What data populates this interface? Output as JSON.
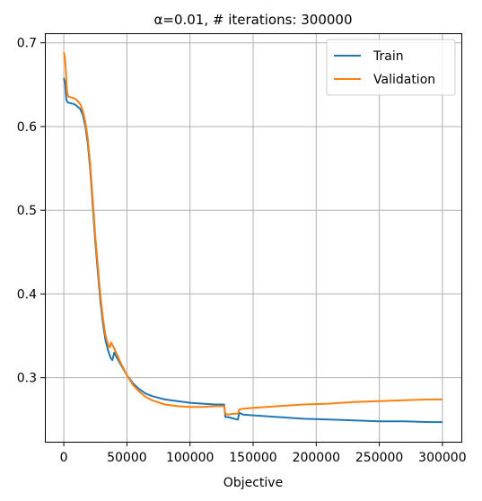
{
  "chart_data": {
    "type": "line",
    "title": "α=0.01, # iterations: 300000",
    "xlabel": "Objective",
    "ylabel": "",
    "xlim": [
      -15000,
      315000
    ],
    "ylim": [
      0.2235,
      0.7115
    ],
    "x_ticks": [
      0,
      50000,
      100000,
      150000,
      200000,
      250000,
      300000
    ],
    "x_tick_labels": [
      "0",
      "50000",
      "100000",
      "150000",
      "200000",
      "250000",
      "300000"
    ],
    "y_ticks": [
      0.3,
      0.4,
      0.5,
      0.6,
      0.7
    ],
    "y_tick_labels": [
      "0.3",
      "0.4",
      "0.5",
      "0.6",
      "0.7"
    ],
    "grid": true,
    "legend_position": "top-right",
    "series": [
      {
        "name": "Train",
        "color": "#1f77b4",
        "x": [
          0,
          1000,
          2000,
          3000,
          5000,
          8000,
          10000,
          13000,
          15000,
          17000,
          19000,
          21000,
          23000,
          25000,
          27000,
          29000,
          31000,
          33000,
          35000,
          37000,
          38500,
          40000,
          42000,
          45000,
          50000,
          55000,
          60000,
          65000,
          70000,
          80000,
          90000,
          100000,
          110000,
          120000,
          127000,
          128000,
          130000,
          135000,
          138000,
          139000,
          142000,
          150000,
          170000,
          190000,
          210000,
          230000,
          250000,
          270000,
          290000,
          300000
        ],
        "y": [
          0.658,
          0.652,
          0.632,
          0.629,
          0.628,
          0.627,
          0.625,
          0.621,
          0.614,
          0.601,
          0.58,
          0.548,
          0.505,
          0.462,
          0.425,
          0.391,
          0.365,
          0.345,
          0.333,
          0.324,
          0.321,
          0.33,
          0.324,
          0.316,
          0.303,
          0.293,
          0.286,
          0.281,
          0.278,
          0.274,
          0.272,
          0.27,
          0.269,
          0.268,
          0.268,
          0.253,
          0.253,
          0.251,
          0.25,
          0.258,
          0.256,
          0.255,
          0.253,
          0.251,
          0.25,
          0.249,
          0.248,
          0.248,
          0.247,
          0.247
        ]
      },
      {
        "name": "Validation",
        "color": "#ff7f0e",
        "x": [
          0,
          800,
          1500,
          2500,
          3500,
          5000,
          8000,
          10000,
          13000,
          15000,
          17000,
          19000,
          21000,
          23000,
          25000,
          27000,
          29000,
          31000,
          33000,
          35000,
          36500,
          37500,
          38500,
          40000,
          42000,
          45000,
          50000,
          55000,
          60000,
          65000,
          70000,
          80000,
          90000,
          100000,
          110000,
          120000,
          127000,
          128000,
          130000,
          135000,
          138000,
          139000,
          142000,
          150000,
          170000,
          190000,
          210000,
          230000,
          250000,
          270000,
          290000,
          300000
        ],
        "y": [
          0.689,
          0.683,
          0.67,
          0.642,
          0.636,
          0.635,
          0.634,
          0.632,
          0.627,
          0.619,
          0.606,
          0.586,
          0.554,
          0.512,
          0.469,
          0.432,
          0.398,
          0.371,
          0.351,
          0.34,
          0.336,
          0.342,
          0.339,
          0.335,
          0.328,
          0.318,
          0.303,
          0.291,
          0.283,
          0.277,
          0.273,
          0.268,
          0.266,
          0.265,
          0.265,
          0.266,
          0.266,
          0.257,
          0.256,
          0.257,
          0.257,
          0.262,
          0.263,
          0.264,
          0.266,
          0.268,
          0.269,
          0.271,
          0.272,
          0.273,
          0.274,
          0.274
        ]
      }
    ]
  }
}
